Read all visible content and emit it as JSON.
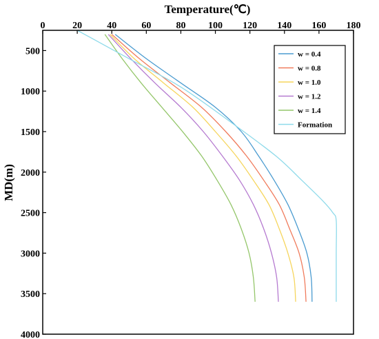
{
  "chart_data": {
    "type": "line",
    "title": "Temperature(℃)",
    "xlabel": "Temperature(℃)",
    "ylabel": "MD(m)",
    "xlim": [
      0,
      180
    ],
    "ylim": [
      250,
      4000
    ],
    "y_inverted": true,
    "x_axis_position": "top",
    "x_ticks": [
      0,
      20,
      40,
      60,
      80,
      100,
      120,
      140,
      160,
      180
    ],
    "y_ticks": [
      500,
      1000,
      1500,
      2000,
      2500,
      3000,
      3500,
      4000
    ],
    "grid": false,
    "legend_position": "top-right",
    "series": [
      {
        "name": "w = 0.4",
        "color": "#4a9bd0",
        "points": [
          [
            42,
            300
          ],
          [
            60,
            600
          ],
          [
            80,
            900
          ],
          [
            100,
            1200
          ],
          [
            115,
            1500
          ],
          [
            125,
            1800
          ],
          [
            134,
            2100
          ],
          [
            142,
            2400
          ],
          [
            148,
            2700
          ],
          [
            153,
            3000
          ],
          [
            155.5,
            3300
          ],
          [
            156,
            3600
          ]
        ]
      },
      {
        "name": "w = 0.8",
        "color": "#f07b5c",
        "points": [
          [
            40,
            300
          ],
          [
            56,
            600
          ],
          [
            74,
            900
          ],
          [
            92,
            1200
          ],
          [
            106,
            1500
          ],
          [
            118,
            1800
          ],
          [
            128,
            2100
          ],
          [
            137,
            2400
          ],
          [
            143,
            2700
          ],
          [
            148.5,
            3000
          ],
          [
            151.5,
            3300
          ],
          [
            152.5,
            3600
          ]
        ]
      },
      {
        "name": "w = 1.0",
        "color": "#f6d55c",
        "points": [
          [
            39,
            300
          ],
          [
            53,
            600
          ],
          [
            70,
            900
          ],
          [
            87,
            1200
          ],
          [
            100,
            1500
          ],
          [
            112,
            1800
          ],
          [
            122,
            2100
          ],
          [
            131,
            2400
          ],
          [
            137,
            2700
          ],
          [
            142,
            3000
          ],
          [
            145.5,
            3300
          ],
          [
            146.5,
            3600
          ]
        ]
      },
      {
        "name": "w = 1.2",
        "color": "#b57ad0",
        "points": [
          [
            38,
            300
          ],
          [
            51,
            600
          ],
          [
            65,
            900
          ],
          [
            80,
            1200
          ],
          [
            93,
            1500
          ],
          [
            104,
            1800
          ],
          [
            114,
            2100
          ],
          [
            122,
            2400
          ],
          [
            128,
            2700
          ],
          [
            132.5,
            3000
          ],
          [
            135.5,
            3300
          ],
          [
            136.5,
            3600
          ]
        ]
      },
      {
        "name": "w = 1.4",
        "color": "#94c66a",
        "points": [
          [
            36,
            300
          ],
          [
            46,
            600
          ],
          [
            57,
            900
          ],
          [
            69,
            1200
          ],
          [
            81,
            1500
          ],
          [
            92,
            1800
          ],
          [
            101,
            2100
          ],
          [
            109,
            2400
          ],
          [
            115,
            2700
          ],
          [
            119.5,
            3000
          ],
          [
            122,
            3300
          ],
          [
            123,
            3600
          ]
        ]
      },
      {
        "name": "Formation",
        "color": "#8edaea",
        "points": [
          [
            20,
            250
          ],
          [
            50,
            600
          ],
          [
            80,
            950
          ],
          [
            110,
            1400
          ],
          [
            135,
            1800
          ],
          [
            150,
            2100
          ],
          [
            162,
            2350
          ],
          [
            168,
            2500
          ],
          [
            170,
            2600
          ],
          [
            170,
            3000
          ],
          [
            170,
            3600
          ]
        ]
      }
    ]
  }
}
